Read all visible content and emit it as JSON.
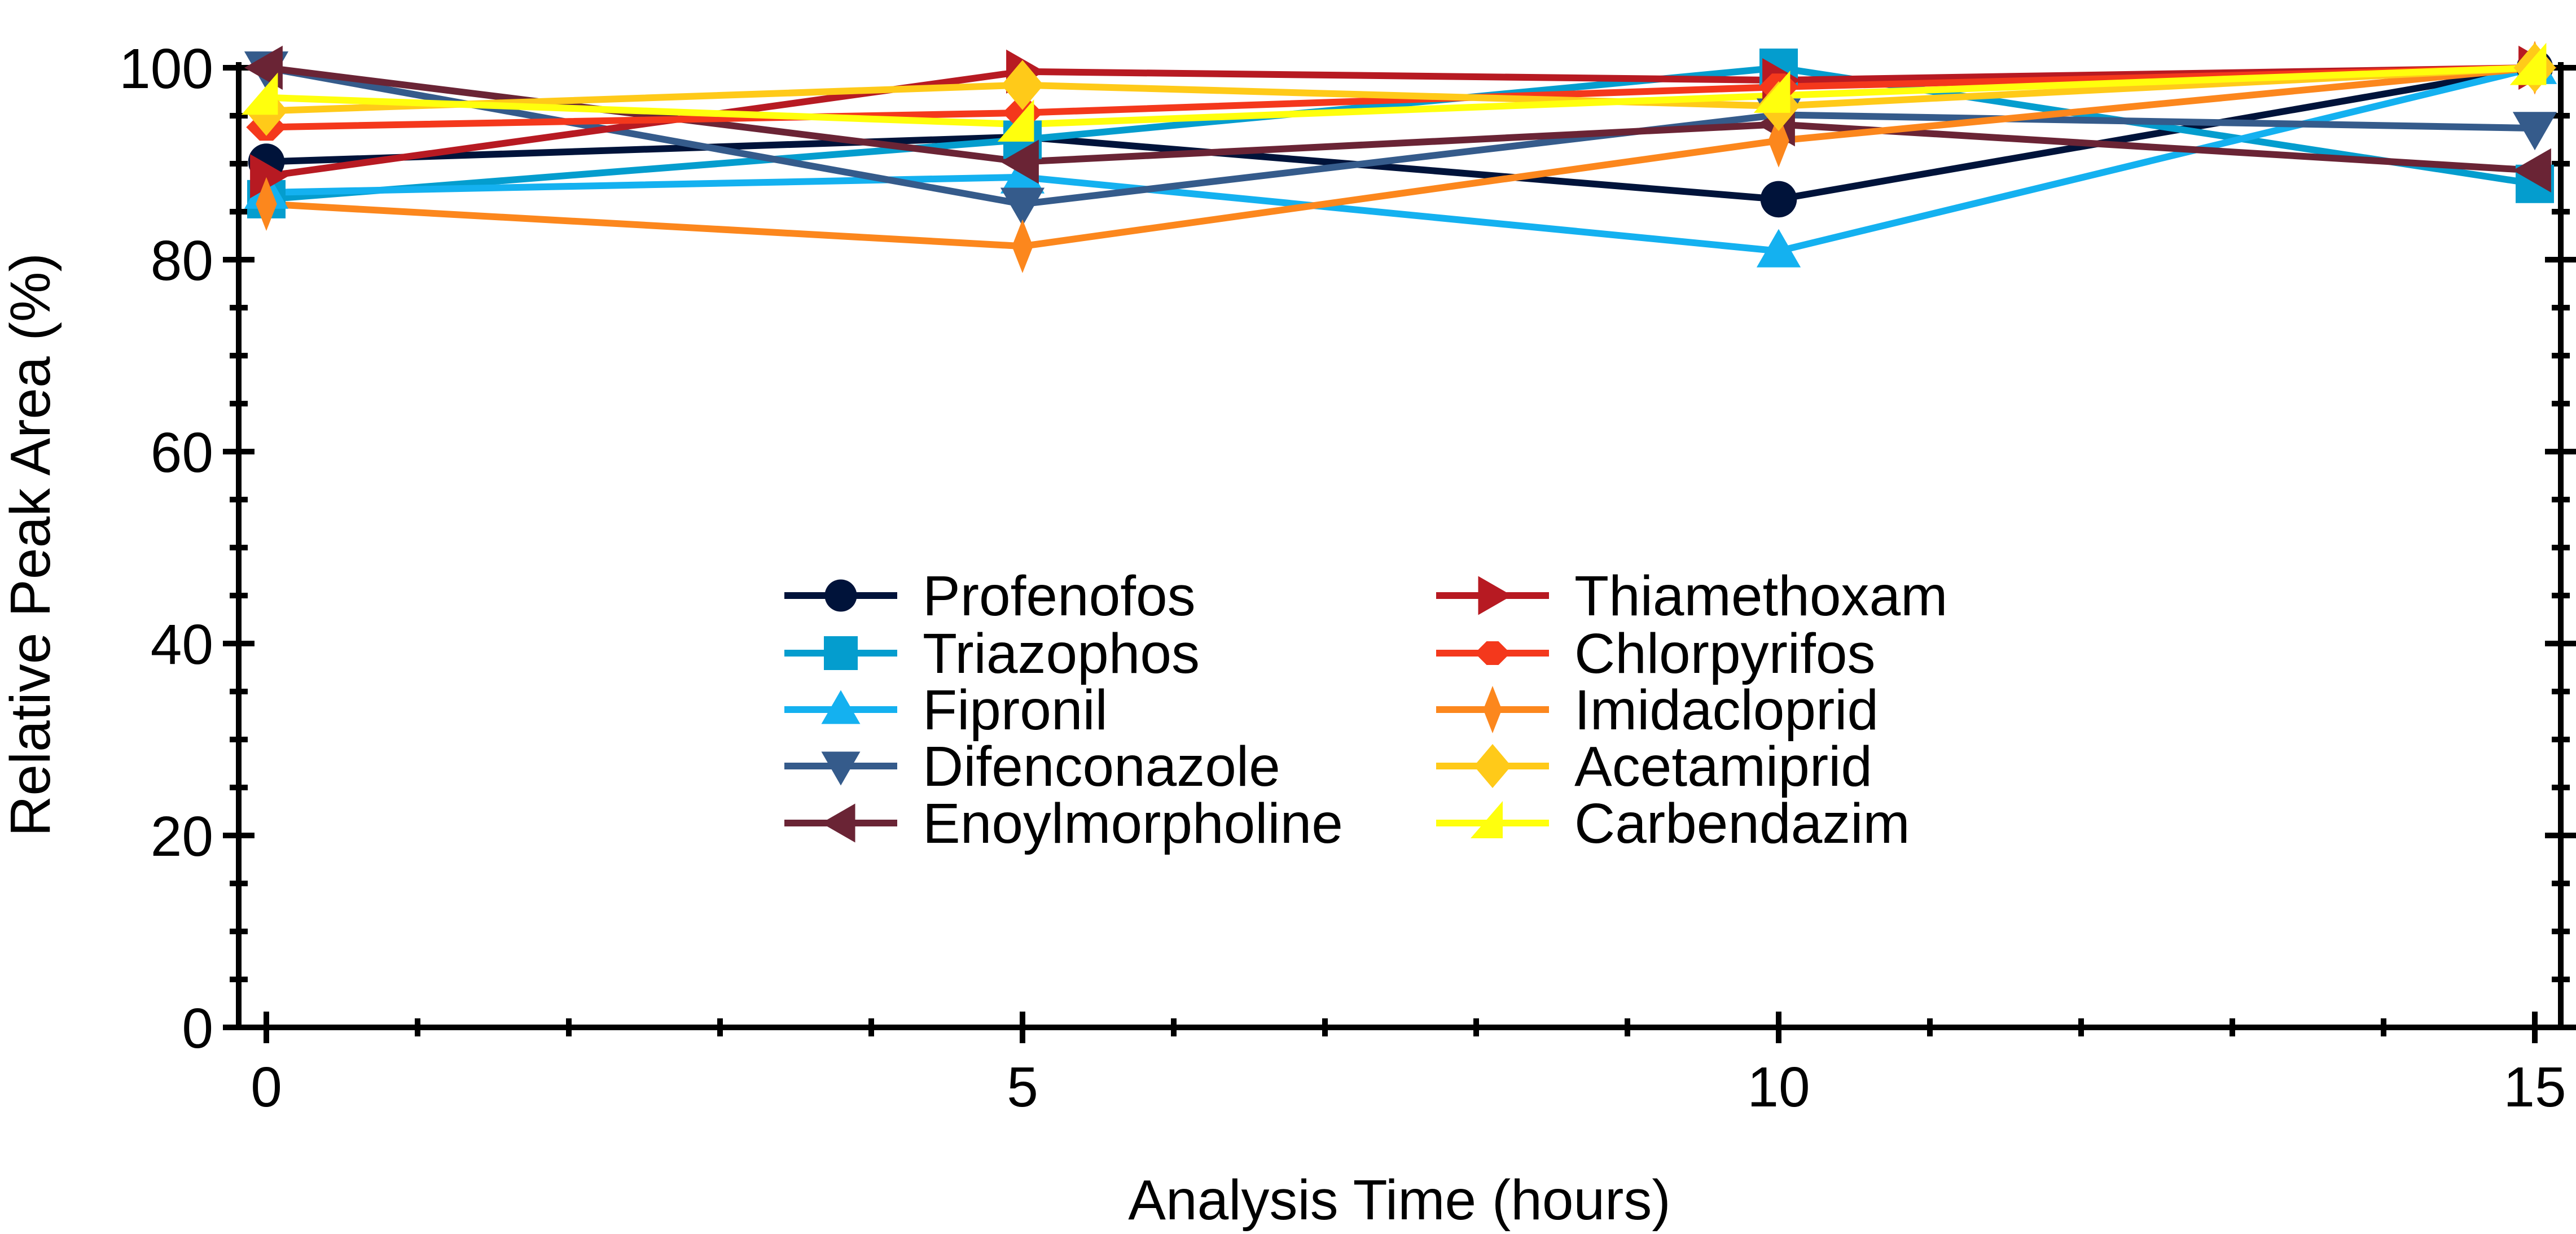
{
  "chart_data": {
    "type": "line",
    "title": "",
    "xlabel": "Analysis Time (hours)",
    "ylabel": "Relative Peak Area (%)",
    "x": [
      0,
      5,
      10,
      15
    ],
    "xlim": [
      0,
      15
    ],
    "ylim": [
      0,
      100
    ],
    "xticks": [
      0,
      5,
      10,
      15
    ],
    "xtick_labels": [
      "0",
      "5",
      "10",
      "15"
    ],
    "x_minor_step": 1,
    "yticks": [
      0,
      20,
      40,
      60,
      80,
      100
    ],
    "ytick_labels": [
      "0",
      "20",
      "40",
      "60",
      "80",
      "100"
    ],
    "y_minor_step": 5,
    "grid": false,
    "legend_position": "center",
    "legend_columns": 2,
    "series": [
      {
        "name": "Profenofos",
        "marker": "circle",
        "color": "#00133A",
        "values": [
          90.2,
          92.8,
          86.3,
          100.0
        ]
      },
      {
        "name": "Triazophos",
        "marker": "square",
        "color": "#049DCE",
        "values": [
          86.3,
          92.5,
          100.0,
          87.9
        ]
      },
      {
        "name": "Fipronil",
        "marker": "triangle-up",
        "color": "#14B1F0",
        "values": [
          87.0,
          88.6,
          80.9,
          100.0
        ]
      },
      {
        "name": "Difenconazole",
        "marker": "triangle-down",
        "color": "#355B8B",
        "values": [
          100.0,
          85.8,
          95.1,
          93.7
        ]
      },
      {
        "name": "Enoylmorpholine",
        "marker": "triangle-left",
        "color": "#6A2435",
        "values": [
          100.0,
          90.2,
          94.1,
          89.3
        ]
      },
      {
        "name": "Thiamethoxam",
        "marker": "triangle-right",
        "color": "#B71A22",
        "values": [
          88.7,
          99.6,
          98.7,
          100.0
        ]
      },
      {
        "name": "Chlorpyrifos",
        "marker": "wide-diamond",
        "color": "#F4381C",
        "values": [
          93.8,
          95.3,
          98.0,
          100.0
        ]
      },
      {
        "name": "Imidacloprid",
        "marker": "thin-diamond",
        "color": "#FC871D",
        "values": [
          85.8,
          81.4,
          92.4,
          100.0
        ]
      },
      {
        "name": "Acetamiprid",
        "marker": "diamond",
        "color": "#FFCA19",
        "values": [
          95.5,
          98.2,
          96.0,
          100.0
        ]
      },
      {
        "name": "Carbendazim",
        "marker": "half-triangle",
        "color": "#FFFF0D",
        "values": [
          96.9,
          94.1,
          97.1,
          100.0
        ]
      }
    ]
  }
}
